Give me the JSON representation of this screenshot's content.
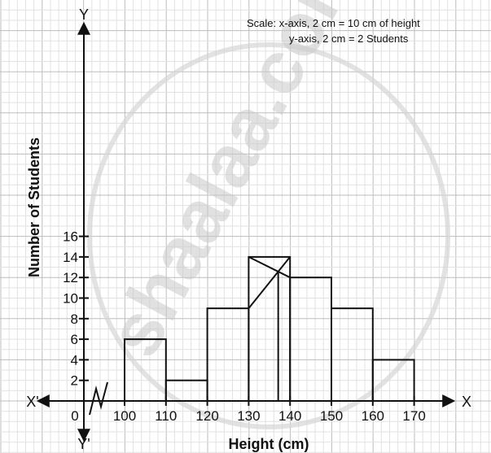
{
  "chart_data": {
    "type": "bar",
    "subtype": "histogram",
    "bins": [
      {
        "from": 100,
        "to": 110,
        "value": 6
      },
      {
        "from": 110,
        "to": 120,
        "value": 2
      },
      {
        "from": 120,
        "to": 130,
        "value": 9
      },
      {
        "from": 130,
        "to": 140,
        "value": 14
      },
      {
        "from": 140,
        "to": 150,
        "value": 12
      },
      {
        "from": 150,
        "to": 160,
        "value": 9
      },
      {
        "from": 160,
        "to": 170,
        "value": 4
      }
    ],
    "mode_construction": {
      "line1": {
        "from": [
          130,
          14
        ],
        "to": [
          140,
          12
        ]
      },
      "line2": {
        "from": [
          140,
          14
        ],
        "to": [
          130,
          9
        ]
      },
      "intersection_x": 137.14
    },
    "xlabel": "Height (cm)",
    "ylabel": "Number of Students",
    "x_ticks": [
      "0",
      "100",
      "110",
      "120",
      "130",
      "140",
      "150",
      "160",
      "170"
    ],
    "y_ticks": [
      "2",
      "4",
      "6",
      "8",
      "10",
      "12",
      "14",
      "16"
    ],
    "xlim": [
      90,
      180
    ],
    "ylim": [
      0,
      16
    ],
    "x_break": true,
    "grid": true,
    "axis_names": {
      "x_pos": "X",
      "x_neg": "X'",
      "y_pos": "Y",
      "y_neg": "Y'"
    },
    "scale_note": [
      "Scale: x-axis, 2 cm = 10 cm of height",
      "y-axis, 2 cm = 2 Students"
    ],
    "watermark": "shaalaa.com"
  }
}
